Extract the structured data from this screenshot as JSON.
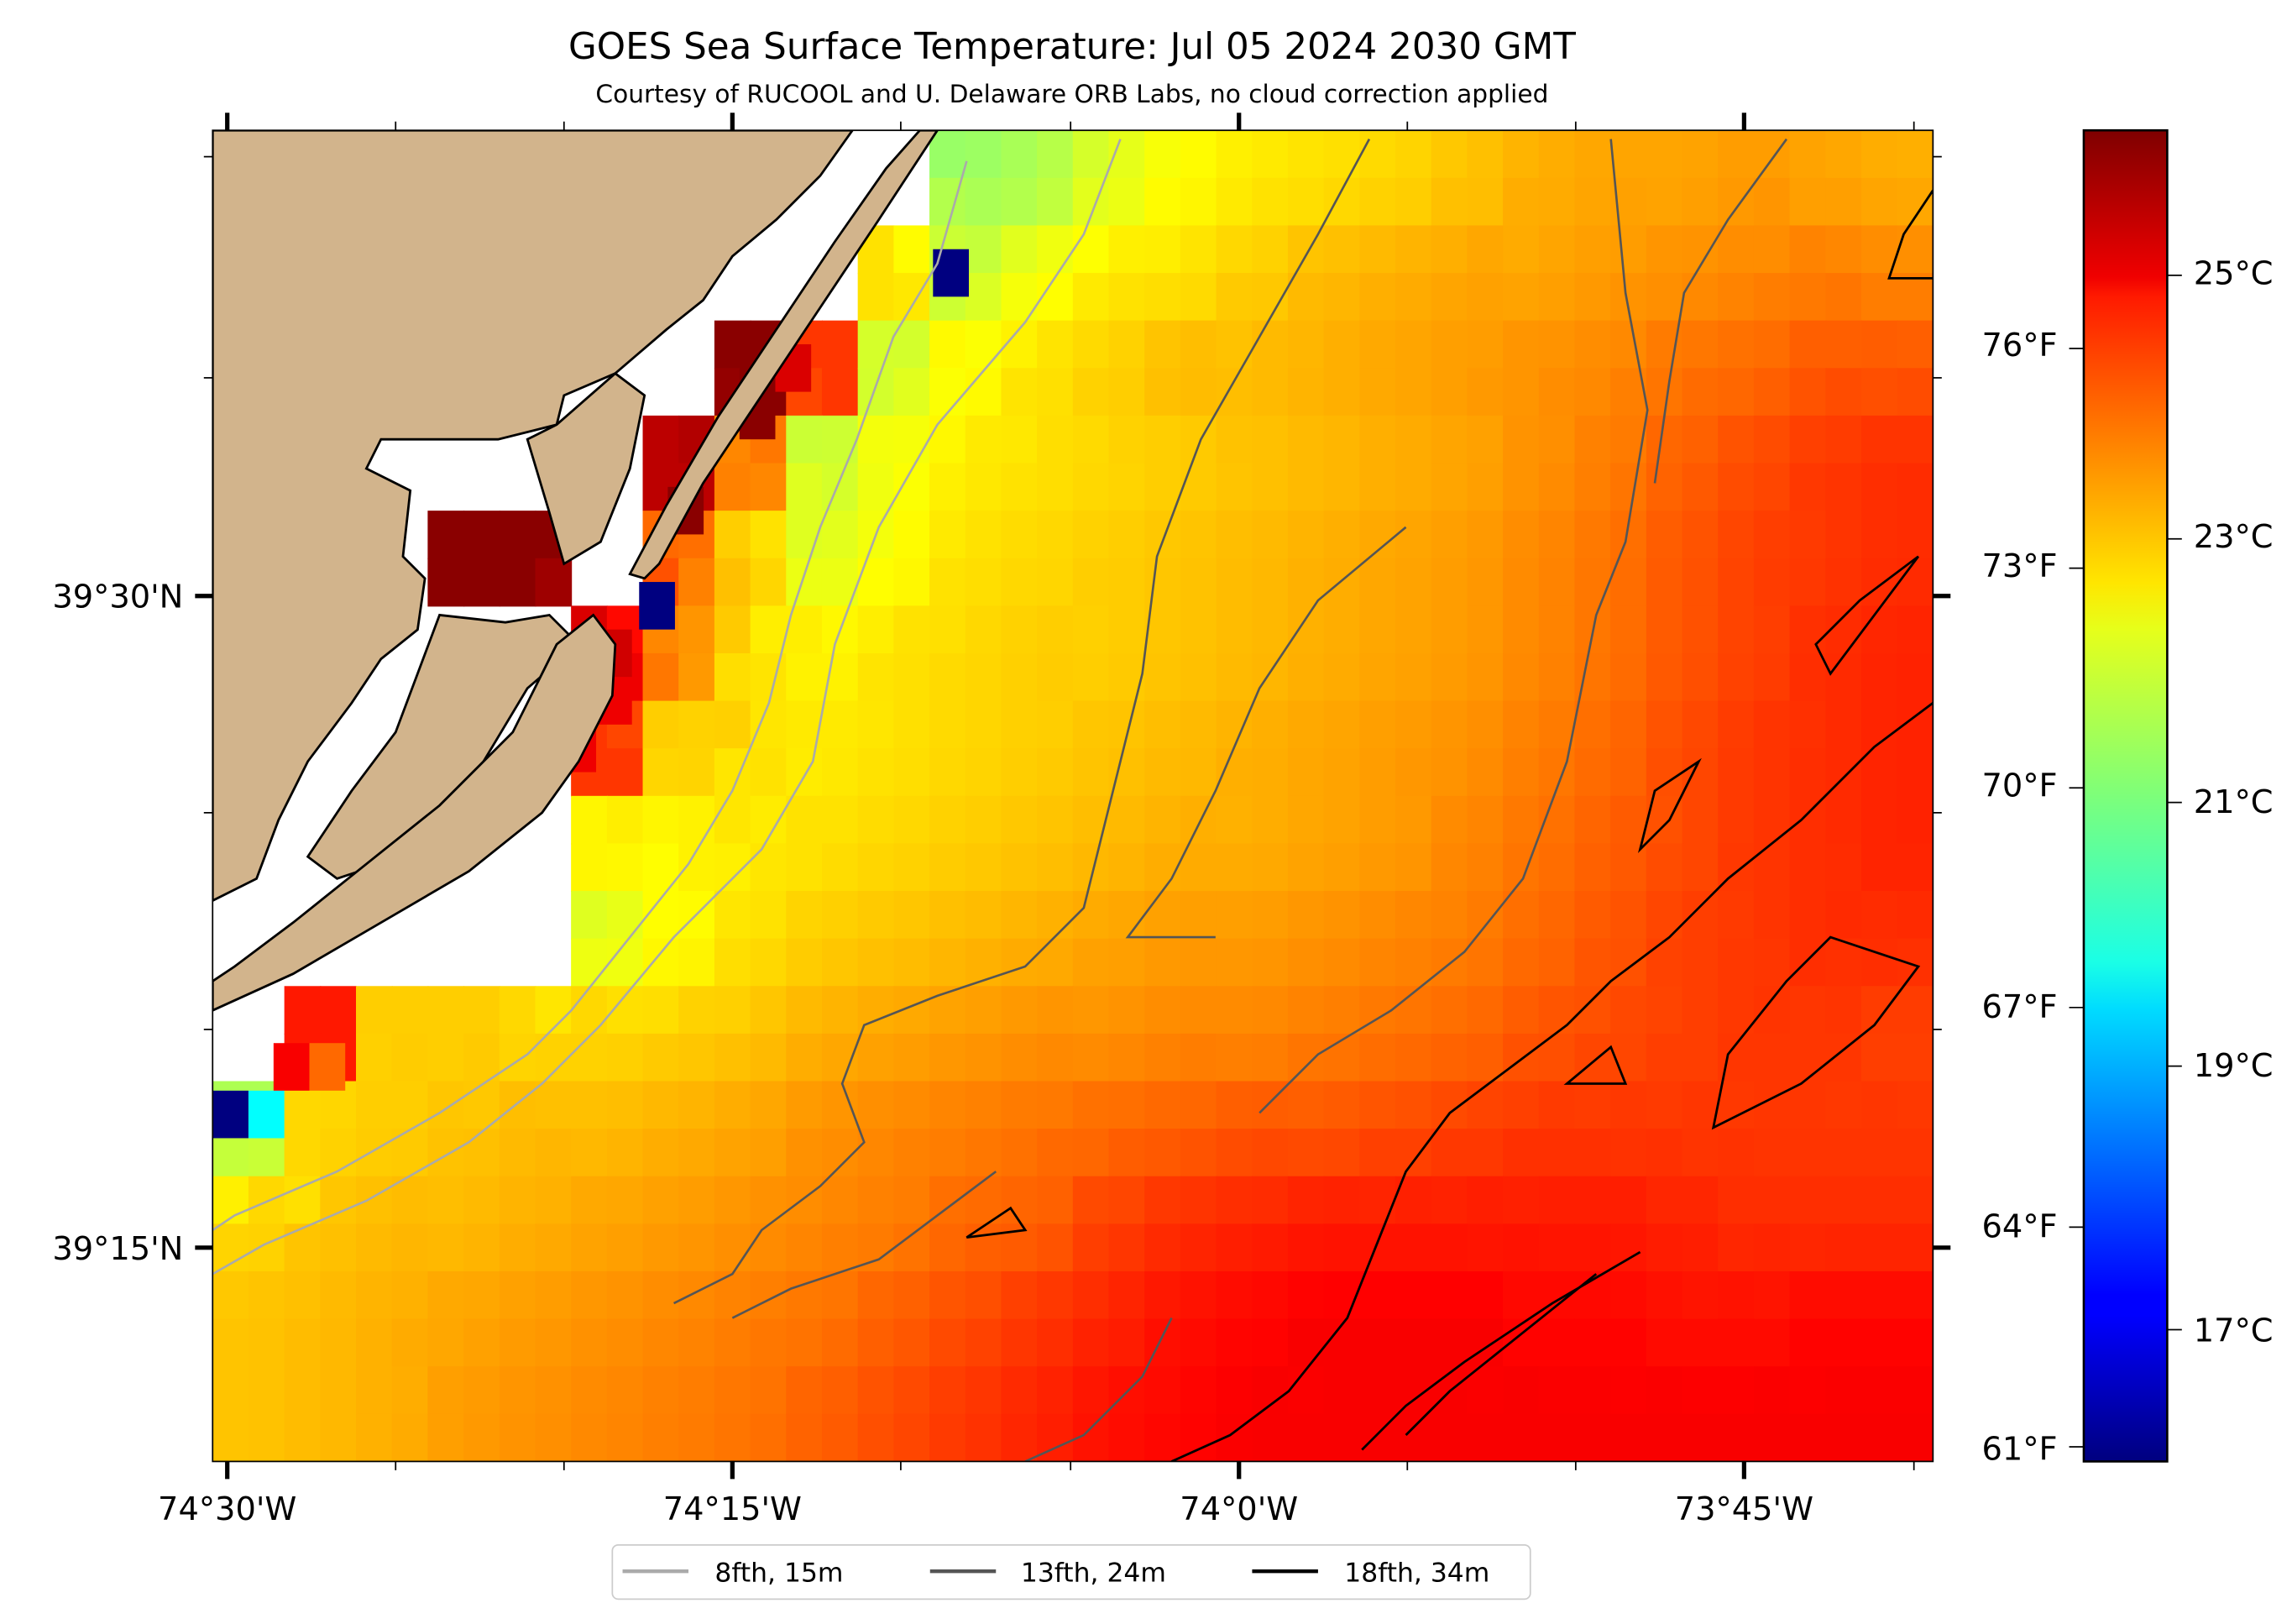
{
  "title": "GOES Sea Surface Temperature: Jul 05 2024 2030 GMT",
  "subtitle": "Courtesy of RUCOOL and U. Delaware ORB Labs, no cloud correction applied",
  "colors": {
    "land": "#d2b48c",
    "nodata": "#ffffff",
    "contour_8fth": "#aaaaaa",
    "contour_13fth": "#555555",
    "contour_18fth": "#000000"
  },
  "chart_data": {
    "type": "heatmap",
    "colormap": "jet",
    "value_range_c": [
      16.0,
      26.1
    ],
    "x_ticks": [
      "74°30'W",
      "74°15'W",
      "74°0'W",
      "73°45'W"
    ],
    "y_ticks": [
      "39°30'N",
      "39°15'N"
    ],
    "colorbar_c_ticks": [
      "25°C",
      "23°C",
      "21°C",
      "19°C",
      "17°C"
    ],
    "colorbar_c_values": [
      25,
      23,
      21,
      19,
      17
    ],
    "colorbar_f_ticks": [
      "76°F",
      "73°F",
      "70°F",
      "67°F",
      "64°F",
      "61°F"
    ],
    "colorbar_f_values": [
      76,
      73,
      70,
      67,
      64,
      61
    ],
    "legend": [
      {
        "label": "8fth, 15m"
      },
      {
        "label": "13fth, 24m"
      },
      {
        "label": "18fth, 34m"
      }
    ],
    "grid_c": [
      [
        null,
        null,
        null,
        null,
        null,
        null,
        null,
        null,
        null,
        null,
        21.3,
        21.5,
        22.0,
        22.3,
        22.5,
        22.6,
        22.7,
        22.9,
        23.1,
        23.2,
        23.2,
        23.3,
        23.2,
        23.1
      ],
      [
        null,
        null,
        null,
        null,
        null,
        null,
        null,
        null,
        null,
        22.6,
        21.8,
        22.2,
        22.5,
        22.6,
        22.8,
        23.0,
        23.1,
        23.2,
        23.2,
        23.3,
        23.4,
        23.5,
        23.6,
        23.5
      ],
      [
        null,
        null,
        null,
        null,
        null,
        null,
        null,
        26.0,
        24.3,
        21.9,
        22.3,
        22.6,
        22.8,
        23.0,
        23.0,
        23.1,
        23.2,
        23.3,
        23.4,
        23.5,
        23.7,
        23.8,
        24.0,
        24.0
      ],
      [
        null,
        null,
        null,
        null,
        null,
        null,
        25.5,
        23.5,
        21.8,
        22.2,
        22.5,
        22.6,
        22.7,
        22.8,
        22.9,
        23.0,
        23.1,
        23.2,
        23.4,
        23.6,
        23.9,
        24.1,
        24.3,
        24.4
      ],
      [
        null,
        null,
        null,
        26.0,
        26.0,
        null,
        23.8,
        22.8,
        22.0,
        22.3,
        22.6,
        22.7,
        22.8,
        22.9,
        23.0,
        23.1,
        23.2,
        23.3,
        23.5,
        23.7,
        24.0,
        24.2,
        24.3,
        24.4
      ],
      [
        null,
        null,
        null,
        null,
        null,
        25.0,
        23.5,
        22.6,
        22.4,
        22.6,
        22.7,
        22.8,
        22.8,
        22.9,
        23.0,
        23.1,
        23.2,
        23.3,
        23.5,
        23.7,
        24.0,
        24.2,
        24.4,
        24.5
      ],
      [
        null,
        null,
        null,
        null,
        null,
        24.3,
        22.8,
        22.6,
        22.5,
        22.6,
        22.7,
        22.8,
        22.9,
        23.0,
        23.1,
        23.2,
        23.3,
        23.4,
        23.6,
        23.8,
        24.1,
        24.3,
        24.4,
        24.5
      ],
      [
        null,
        null,
        null,
        null,
        null,
        22.4,
        22.4,
        22.5,
        22.6,
        22.7,
        22.8,
        22.9,
        23.0,
        23.1,
        23.1,
        23.2,
        23.3,
        23.5,
        23.7,
        23.9,
        24.1,
        24.3,
        24.4,
        24.5
      ],
      [
        null,
        null,
        null,
        null,
        null,
        22.0,
        22.3,
        22.6,
        22.8,
        22.9,
        23.0,
        23.1,
        23.2,
        23.3,
        23.3,
        23.4,
        23.5,
        23.6,
        23.8,
        24.0,
        24.2,
        24.3,
        24.4,
        24.4
      ],
      [
        null,
        24.6,
        22.8,
        22.8,
        22.7,
        22.7,
        22.8,
        22.9,
        23.1,
        23.2,
        23.3,
        23.4,
        23.4,
        23.5,
        23.5,
        23.6,
        23.7,
        23.8,
        24.0,
        24.1,
        24.2,
        24.3,
        24.3,
        24.2
      ],
      [
        21.5,
        22.7,
        22.8,
        22.9,
        23.0,
        23.0,
        23.1,
        23.2,
        23.4,
        23.5,
        23.6,
        23.7,
        23.8,
        23.9,
        24.0,
        24.0,
        24.1,
        24.2,
        24.3,
        24.3,
        24.3,
        24.3,
        24.3,
        24.3
      ],
      [
        22.7,
        22.9,
        23.0,
        23.0,
        23.1,
        23.2,
        23.3,
        23.4,
        23.5,
        23.6,
        23.8,
        23.9,
        24.2,
        24.4,
        24.5,
        24.6,
        24.6,
        24.6,
        24.6,
        24.6,
        24.5,
        24.4,
        24.4,
        24.4
      ],
      [
        22.9,
        23.0,
        23.1,
        23.2,
        23.3,
        23.4,
        23.5,
        23.6,
        23.7,
        23.9,
        24.1,
        24.3,
        24.5,
        24.7,
        24.8,
        24.9,
        24.9,
        24.9,
        24.8,
        24.8,
        24.7,
        24.7,
        24.8,
        24.8
      ],
      [
        22.9,
        23.0,
        23.1,
        23.3,
        23.4,
        23.5,
        23.6,
        23.7,
        23.9,
        24.1,
        24.3,
        24.5,
        24.7,
        24.8,
        24.9,
        24.9,
        24.9,
        24.9,
        24.9,
        24.9,
        24.9,
        24.9,
        24.9,
        24.9
      ]
    ],
    "pixel_overrides_c": [
      {
        "col": 20.1,
        "row": 2.5,
        "t": 16.0
      },
      {
        "col": 11.9,
        "row": 9.5,
        "t": 16.0
      },
      {
        "col": 0,
        "row": 20.2,
        "t": 16.0
      },
      {
        "col": 1,
        "row": 20.2,
        "t": 19.8
      },
      {
        "col": 1.7,
        "row": 19.2,
        "t": 24.9
      },
      {
        "col": 2.7,
        "row": 19.2,
        "t": 23.8
      },
      {
        "col": 14.7,
        "row": 4.5,
        "t": 26.0
      },
      {
        "col": 14.7,
        "row": 5.5,
        "t": 26.0
      },
      {
        "col": 15.7,
        "row": 4.5,
        "t": 25.2
      },
      {
        "col": 12.7,
        "row": 7.5,
        "t": 26.0
      },
      {
        "col": 10.7,
        "row": 10.5,
        "t": 25.3
      },
      {
        "col": 10.7,
        "row": 11.5,
        "t": 25.0
      },
      {
        "col": 9.7,
        "row": 12.5,
        "t": 25.0
      }
    ]
  }
}
